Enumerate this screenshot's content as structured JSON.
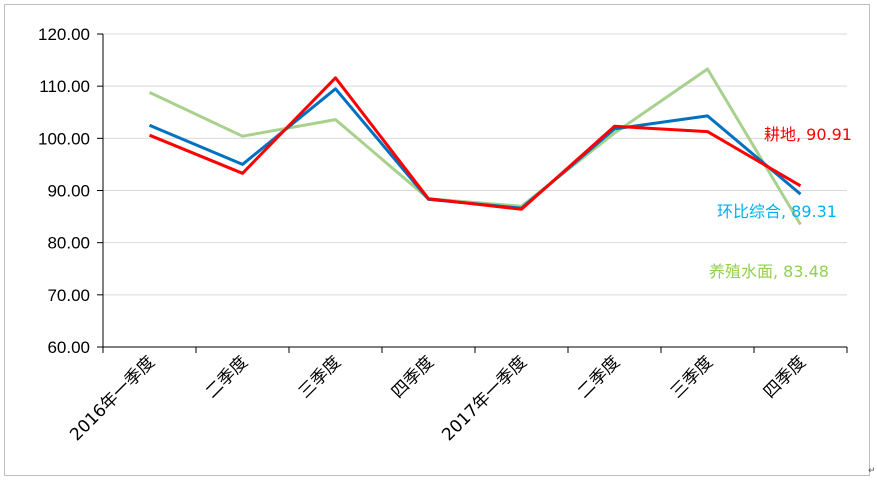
{
  "chart_data": {
    "type": "line",
    "categories": [
      "2016年一季度",
      "二季度",
      "三季度",
      "四季度",
      "2017年一季度",
      "二季度",
      "三季度",
      "四季度"
    ],
    "ylim": [
      60,
      120
    ],
    "yticks": [
      "60.00",
      "70.00",
      "80.00",
      "90.00",
      "100.00",
      "110.00",
      "120.00"
    ],
    "grid": true,
    "series": [
      {
        "name": "环比综合",
        "color": "#0070C0",
        "values": [
          102.5,
          95.0,
          109.5,
          88.3,
          86.6,
          101.8,
          104.3,
          89.31
        ],
        "end_label": "环比综合, 89.31",
        "label_color": "#00B0F0"
      },
      {
        "name": "耕地",
        "color": "#FF0000",
        "values": [
          100.6,
          93.3,
          111.6,
          88.4,
          86.4,
          102.3,
          101.3,
          90.91
        ],
        "end_label": "耕地, 90.91",
        "label_color": "#FF0000"
      },
      {
        "name": "养殖水面",
        "color": "#A9D18E",
        "values": [
          108.8,
          100.4,
          103.6,
          88.4,
          87.0,
          101.0,
          113.3,
          83.48
        ],
        "end_label": "养殖水面, 83.48",
        "label_color": "#92D050"
      }
    ]
  }
}
